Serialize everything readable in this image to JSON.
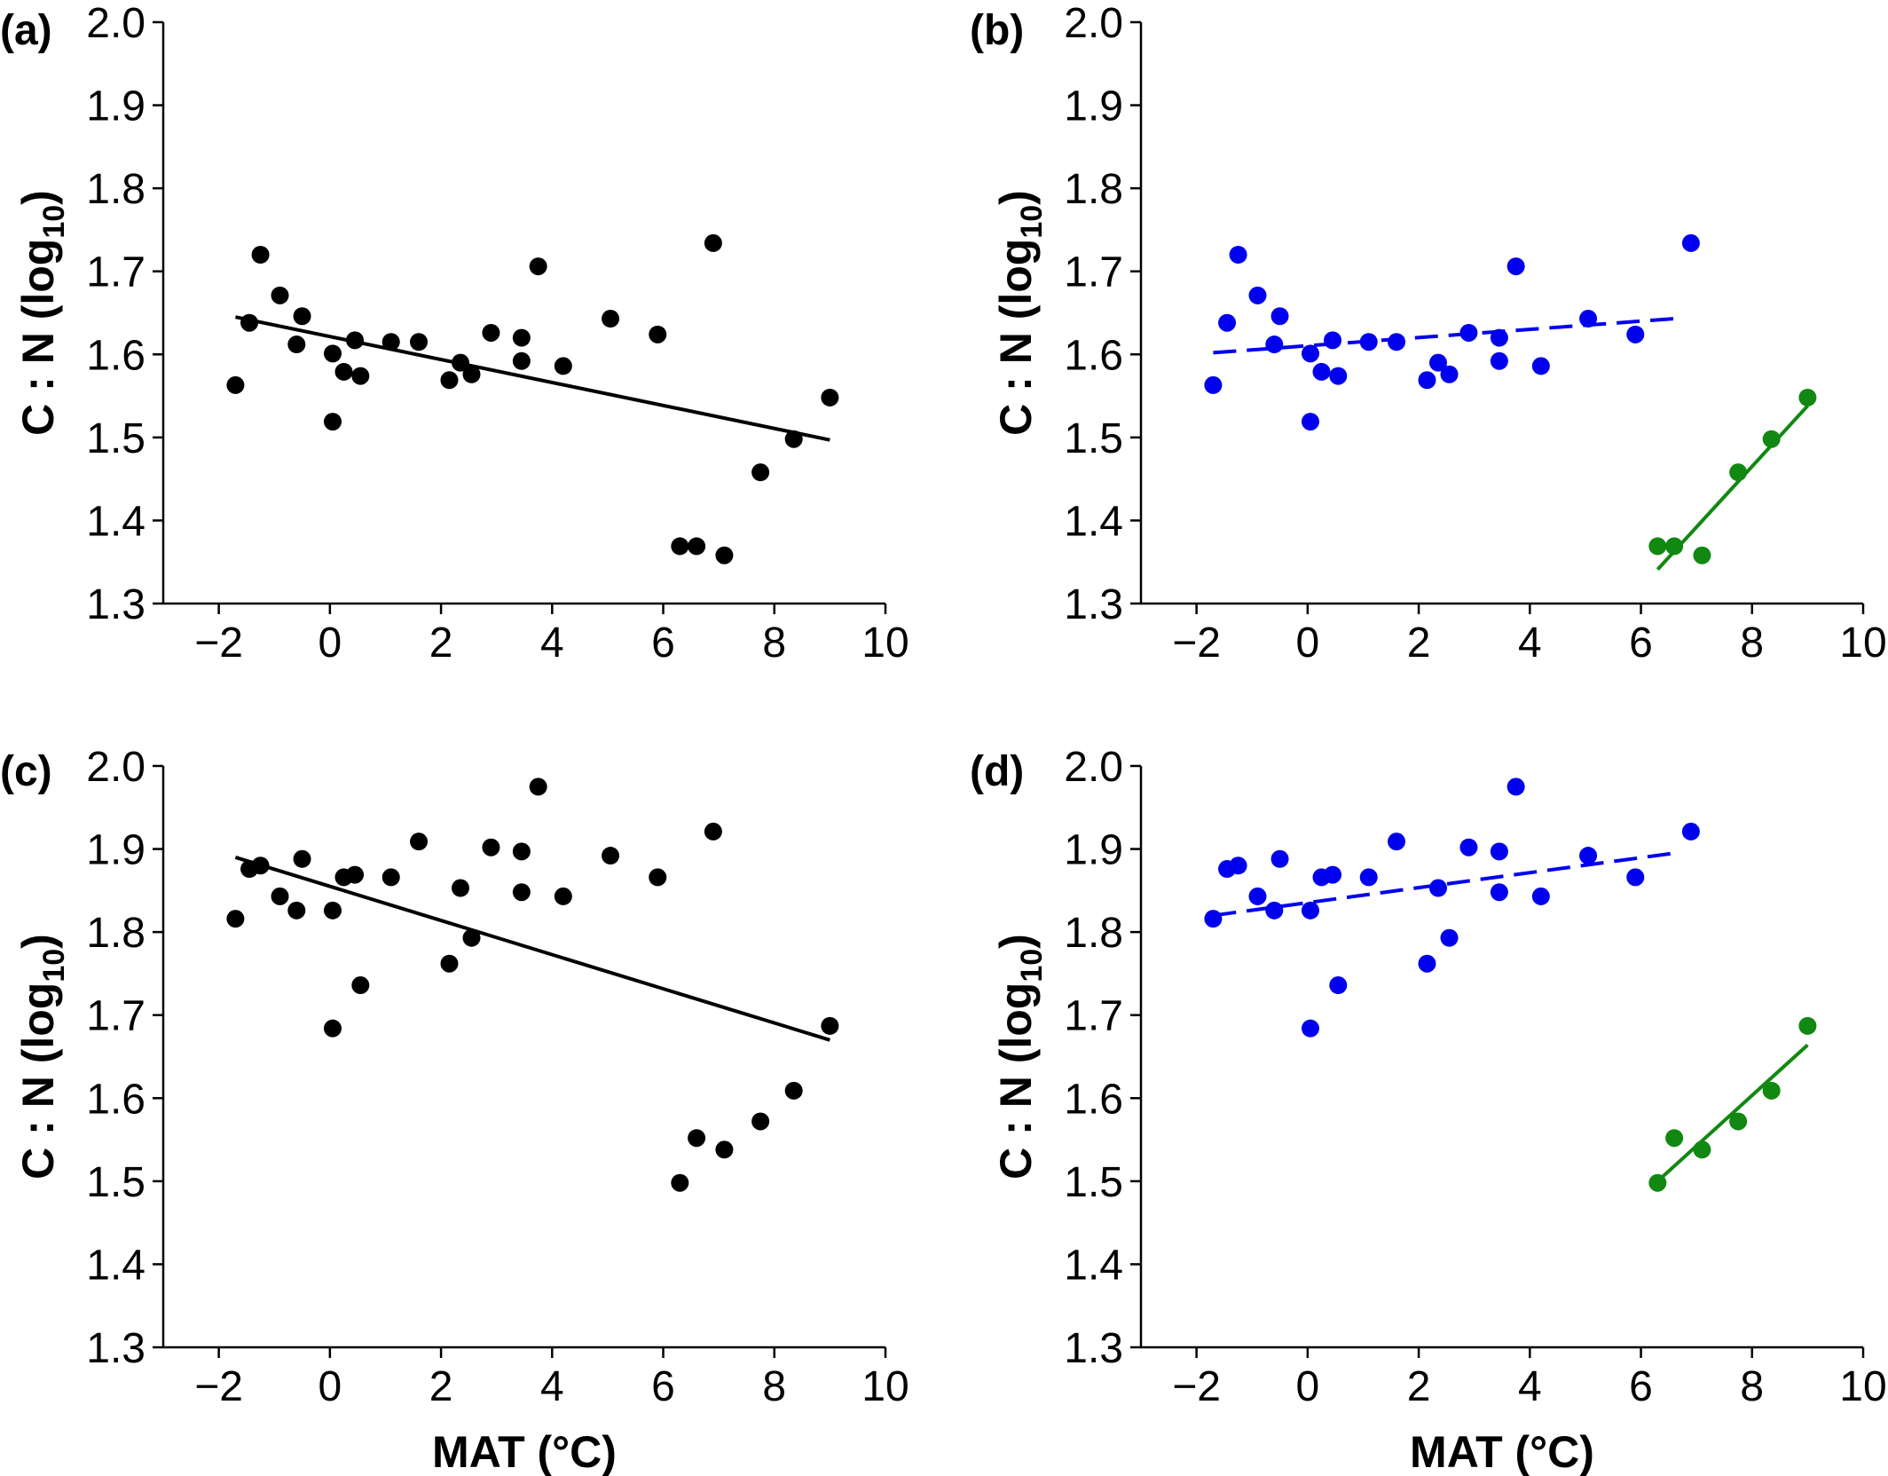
{
  "chart_data": [
    {
      "panel": "a",
      "type": "scatter",
      "label": "(a)",
      "ylabel": "C : N (log",
      "ylabel_sub": "10",
      "ylabel_tail": ")",
      "xlabel": "",
      "xlim": [
        -3,
        10
      ],
      "ylim": [
        1.3,
        2.0
      ],
      "xticks": [
        -2,
        0,
        2,
        4,
        6,
        8,
        10
      ],
      "yticks": [
        1.3,
        1.4,
        1.5,
        1.6,
        1.7,
        1.8,
        1.9,
        2.0
      ],
      "series": [
        {
          "color": "#000000",
          "points": [
            [
              -1.7,
              1.563
            ],
            [
              -1.45,
              1.638
            ],
            [
              -1.25,
              1.72
            ],
            [
              -0.9,
              1.671
            ],
            [
              -0.6,
              1.612
            ],
            [
              -0.5,
              1.646
            ],
            [
              0.05,
              1.601
            ],
            [
              0.05,
              1.519
            ],
            [
              0.25,
              1.579
            ],
            [
              0.45,
              1.617
            ],
            [
              0.55,
              1.574
            ],
            [
              1.1,
              1.615
            ],
            [
              1.6,
              1.615
            ],
            [
              2.15,
              1.569
            ],
            [
              2.35,
              1.59
            ],
            [
              2.55,
              1.576
            ],
            [
              2.9,
              1.626
            ],
            [
              3.45,
              1.62
            ],
            [
              3.45,
              1.592
            ],
            [
              3.75,
              1.706
            ],
            [
              4.2,
              1.586
            ],
            [
              5.05,
              1.643
            ],
            [
              5.9,
              1.624
            ],
            [
              6.3,
              1.369
            ],
            [
              6.6,
              1.369
            ],
            [
              6.9,
              1.734
            ],
            [
              7.1,
              1.358
            ],
            [
              7.75,
              1.458
            ],
            [
              8.35,
              1.498
            ],
            [
              9.0,
              1.548
            ]
          ],
          "fit": {
            "x": [
              -1.7,
              9.0
            ],
            "y": [
              1.645,
              1.497
            ],
            "style": "solid"
          }
        }
      ]
    },
    {
      "panel": "b",
      "type": "scatter",
      "label": "(b)",
      "ylabel": "C : N (log",
      "ylabel_sub": "10",
      "ylabel_tail": ")",
      "xlabel": "",
      "xlim": [
        -3,
        10
      ],
      "ylim": [
        1.3,
        2.0
      ],
      "xticks": [
        -2,
        0,
        2,
        4,
        6,
        8,
        10
      ],
      "yticks": [
        1.3,
        1.4,
        1.5,
        1.6,
        1.7,
        1.8,
        1.9,
        2.0
      ],
      "series": [
        {
          "color": "#0000ee",
          "points": [
            [
              -1.7,
              1.563
            ],
            [
              -1.45,
              1.638
            ],
            [
              -1.25,
              1.72
            ],
            [
              -0.9,
              1.671
            ],
            [
              -0.6,
              1.612
            ],
            [
              -0.5,
              1.646
            ],
            [
              0.05,
              1.601
            ],
            [
              0.05,
              1.519
            ],
            [
              0.25,
              1.579
            ],
            [
              0.45,
              1.617
            ],
            [
              0.55,
              1.574
            ],
            [
              1.1,
              1.615
            ],
            [
              1.6,
              1.615
            ],
            [
              2.15,
              1.569
            ],
            [
              2.35,
              1.59
            ],
            [
              2.55,
              1.576
            ],
            [
              2.9,
              1.626
            ],
            [
              3.45,
              1.62
            ],
            [
              3.45,
              1.592
            ],
            [
              3.75,
              1.706
            ],
            [
              4.2,
              1.586
            ],
            [
              5.05,
              1.643
            ],
            [
              5.9,
              1.624
            ],
            [
              6.9,
              1.734
            ]
          ],
          "fit": {
            "x": [
              -1.7,
              6.6
            ],
            "y": [
              1.602,
              1.643
            ],
            "style": "dashed"
          }
        },
        {
          "color": "#118811",
          "points": [
            [
              6.3,
              1.369
            ],
            [
              6.6,
              1.369
            ],
            [
              7.1,
              1.358
            ],
            [
              7.75,
              1.458
            ],
            [
              8.35,
              1.498
            ],
            [
              9.0,
              1.548
            ]
          ],
          "fit": {
            "x": [
              6.3,
              9.0
            ],
            "y": [
              1.341,
              1.538
            ],
            "style": "solid"
          }
        }
      ]
    },
    {
      "panel": "c",
      "type": "scatter",
      "label": "(c)",
      "ylabel": "C : N (log",
      "ylabel_sub": "10",
      "ylabel_tail": ")",
      "xlabel": "MAT (°C)",
      "xlim": [
        -3,
        10
      ],
      "ylim": [
        1.3,
        2.0
      ],
      "xticks": [
        -2,
        0,
        2,
        4,
        6,
        8,
        10
      ],
      "yticks": [
        1.3,
        1.4,
        1.5,
        1.6,
        1.7,
        1.8,
        1.9,
        2.0
      ],
      "series": [
        {
          "color": "#000000",
          "points": [
            [
              -1.7,
              1.816
            ],
            [
              -1.45,
              1.876
            ],
            [
              -1.25,
              1.88
            ],
            [
              -0.9,
              1.843
            ],
            [
              -0.6,
              1.826
            ],
            [
              -0.5,
              1.888
            ],
            [
              0.05,
              1.826
            ],
            [
              0.05,
              1.684
            ],
            [
              0.25,
              1.866
            ],
            [
              0.45,
              1.869
            ],
            [
              0.55,
              1.736
            ],
            [
              1.1,
              1.866
            ],
            [
              1.6,
              1.909
            ],
            [
              2.15,
              1.762
            ],
            [
              2.35,
              1.853
            ],
            [
              2.55,
              1.793
            ],
            [
              2.9,
              1.902
            ],
            [
              3.45,
              1.897
            ],
            [
              3.45,
              1.848
            ],
            [
              3.75,
              1.975
            ],
            [
              4.2,
              1.843
            ],
            [
              5.05,
              1.892
            ],
            [
              5.9,
              1.866
            ],
            [
              6.3,
              1.498
            ],
            [
              6.6,
              1.552
            ],
            [
              6.9,
              1.921
            ],
            [
              7.1,
              1.538
            ],
            [
              7.75,
              1.572
            ],
            [
              8.35,
              1.609
            ],
            [
              9.0,
              1.687
            ]
          ],
          "fit": {
            "x": [
              -1.7,
              9.0
            ],
            "y": [
              1.89,
              1.67
            ],
            "style": "solid"
          }
        }
      ]
    },
    {
      "panel": "d",
      "type": "scatter",
      "label": "(d)",
      "ylabel": "C : N (log",
      "ylabel_sub": "10",
      "ylabel_tail": ")",
      "xlabel": "MAT (°C)",
      "xlim": [
        -3,
        10
      ],
      "ylim": [
        1.3,
        2.0
      ],
      "xticks": [
        -2,
        0,
        2,
        4,
        6,
        8,
        10
      ],
      "yticks": [
        1.3,
        1.4,
        1.5,
        1.6,
        1.7,
        1.8,
        1.9,
        2.0
      ],
      "series": [
        {
          "color": "#0000ee",
          "points": [
            [
              -1.7,
              1.816
            ],
            [
              -1.45,
              1.876
            ],
            [
              -1.25,
              1.88
            ],
            [
              -0.9,
              1.843
            ],
            [
              -0.6,
              1.826
            ],
            [
              -0.5,
              1.888
            ],
            [
              0.05,
              1.826
            ],
            [
              0.05,
              1.684
            ],
            [
              0.25,
              1.866
            ],
            [
              0.45,
              1.869
            ],
            [
              0.55,
              1.736
            ],
            [
              1.1,
              1.866
            ],
            [
              1.6,
              1.909
            ],
            [
              2.15,
              1.762
            ],
            [
              2.35,
              1.853
            ],
            [
              2.55,
              1.793
            ],
            [
              2.9,
              1.902
            ],
            [
              3.45,
              1.897
            ],
            [
              3.45,
              1.848
            ],
            [
              3.75,
              1.975
            ],
            [
              4.2,
              1.843
            ],
            [
              5.05,
              1.892
            ],
            [
              5.9,
              1.866
            ],
            [
              6.9,
              1.921
            ]
          ],
          "fit": {
            "x": [
              -1.7,
              6.6
            ],
            "y": [
              1.82,
              1.895
            ],
            "style": "dashed"
          }
        },
        {
          "color": "#118811",
          "points": [
            [
              6.3,
              1.498
            ],
            [
              6.6,
              1.552
            ],
            [
              7.1,
              1.538
            ],
            [
              7.75,
              1.572
            ],
            [
              8.35,
              1.609
            ],
            [
              9.0,
              1.687
            ]
          ],
          "fit": {
            "x": [
              6.3,
              9.0
            ],
            "y": [
              1.5,
              1.664
            ],
            "style": "solid"
          }
        }
      ]
    }
  ]
}
